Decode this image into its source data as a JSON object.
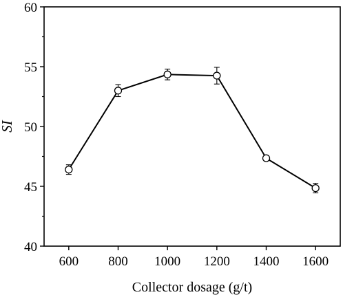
{
  "chart_data": {
    "type": "line",
    "title": "",
    "xlabel": "Collector dosage (g/t)",
    "ylabel": "SI",
    "xlim": [
      500,
      1700
    ],
    "ylim": [
      40,
      60
    ],
    "xticks": [
      600,
      800,
      1000,
      1200,
      1400,
      1600
    ],
    "yticks": [
      40,
      45,
      50,
      55,
      60
    ],
    "xtick_labels": [
      "600",
      "800",
      "1000",
      "1200",
      "1400",
      "1600"
    ],
    "ytick_labels": [
      "40",
      "45",
      "50",
      "55",
      "60"
    ],
    "grid": false,
    "legend": "none",
    "marker": "open-circle",
    "line_color": "#000000",
    "series": [
      {
        "x": [
          600,
          800,
          1000,
          1200,
          1400,
          1600
        ],
        "y": [
          46.4,
          53.0,
          54.35,
          54.25,
          47.35,
          44.85
        ],
        "yerr": [
          0.4,
          0.5,
          0.45,
          0.7,
          0.2,
          0.4
        ]
      }
    ]
  }
}
